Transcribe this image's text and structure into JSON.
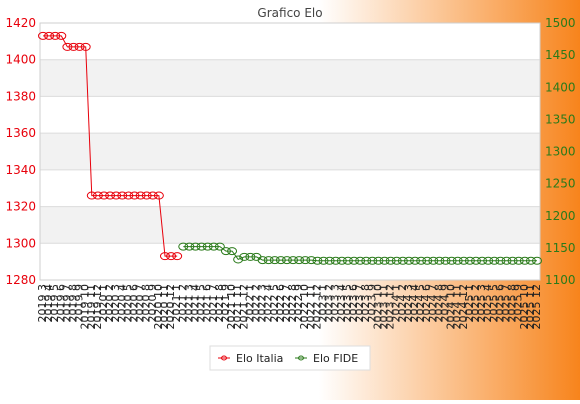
{
  "chart_data": {
    "type": "line",
    "title": "Grafico Elo",
    "categories": [
      "2019 3",
      "2019 4",
      "2019 5",
      "2019 6",
      "2019 7",
      "2019 8",
      "2019 9",
      "2019 10",
      "2019 11",
      "2019 12",
      "2020 1",
      "2020 2",
      "2020 3",
      "2020 4",
      "2020 5",
      "2020 6",
      "2020 7",
      "2020 8",
      "2020 9",
      "2020 10",
      "2020 11",
      "2020 12",
      "2021 1",
      "2021 2",
      "2021 3",
      "2021 4",
      "2021 5",
      "2021 6",
      "2021 7",
      "2021 8",
      "2021 9",
      "2021 10",
      "2021 11",
      "2021 12",
      "2022 1",
      "2022 2",
      "2022 3",
      "2022 4",
      "2022 5",
      "2022 6",
      "2022 7",
      "2022 8",
      "2022 9",
      "2022 10",
      "2022 11",
      "2022 12",
      "2023 1",
      "2023 2",
      "2023 3",
      "2023 4",
      "2023 5",
      "2023 6",
      "2023 7",
      "2023 8",
      "2023 9",
      "2023 10",
      "2023 11",
      "2023 12",
      "2024 1",
      "2024 2",
      "2024 3",
      "2024 4",
      "2024 5",
      "2024 6",
      "2024 7",
      "2024 8",
      "2024 9",
      "2024 10",
      "2024 11",
      "2024 12",
      "2025 1",
      "2025 2",
      "2025 3",
      "2025 4",
      "2025 5",
      "2025 6",
      "2025 7",
      "2025 8",
      "2025 9",
      "2025 10",
      "2025 11",
      "2025 12"
    ],
    "series": [
      {
        "name": "Elo Italia",
        "axis": "left",
        "color": "#e8000b",
        "values": [
          1413,
          1413,
          1413,
          1413,
          1407,
          1407,
          1407,
          1407,
          1326,
          1326,
          1326,
          1326,
          1326,
          1326,
          1326,
          1326,
          1326,
          1326,
          1326,
          1326,
          1293,
          1293,
          1293,
          null,
          null,
          null,
          null,
          null,
          null,
          null,
          null,
          null,
          null,
          null,
          null,
          null,
          null,
          null,
          null,
          null,
          null,
          null,
          null,
          null,
          null,
          null,
          null,
          null,
          null,
          null,
          null,
          null,
          null,
          null,
          null,
          null,
          null,
          null,
          null,
          null,
          null,
          null,
          null,
          null,
          null,
          null,
          null,
          null,
          null,
          null,
          null,
          null,
          null,
          null,
          null,
          null,
          null,
          null,
          null,
          null,
          null,
          null
        ]
      },
      {
        "name": "Elo FIDE",
        "axis": "right",
        "color": "#2a7a1a",
        "values": [
          null,
          null,
          null,
          null,
          null,
          null,
          null,
          null,
          null,
          null,
          null,
          null,
          null,
          null,
          null,
          null,
          null,
          null,
          null,
          null,
          null,
          null,
          null,
          1152,
          1152,
          1152,
          1152,
          1152,
          1152,
          1152,
          1145,
          1145,
          1132,
          1136,
          1136,
          1136,
          1131,
          1131,
          1131,
          1131,
          1131,
          1131,
          1131,
          1131,
          1131,
          1130,
          1130,
          1130,
          1130,
          1130,
          1130,
          1130,
          1130,
          1130,
          1130,
          1130,
          1130,
          1130,
          1130,
          1130,
          1130,
          1130,
          1130,
          1130,
          1130,
          1130,
          1130,
          1130,
          1130,
          1130,
          1130,
          1130,
          1130,
          1130,
          1130,
          1130,
          1130,
          1130,
          1130,
          1130,
          1130,
          1130
        ]
      }
    ],
    "ylim_left": [
      1280,
      1420
    ],
    "ylim_right": [
      1100,
      1500
    ],
    "yticks_left": [
      1280,
      1300,
      1320,
      1340,
      1360,
      1380,
      1400,
      1420
    ],
    "yticks_right": [
      1100,
      1150,
      1200,
      1250,
      1300,
      1350,
      1400,
      1450,
      1500
    ],
    "left_axis_color": "#e8000b",
    "right_axis_color": "#2a7a1a",
    "background_gradient": [
      "#ffffff",
      "#f7841c"
    ],
    "grid": true,
    "legend_position": "bottom-center"
  }
}
